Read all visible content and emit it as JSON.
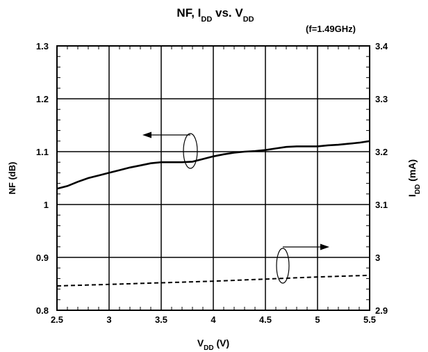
{
  "chart_data": {
    "type": "line",
    "title": {
      "parts": [
        "NF, I",
        "DD",
        " vs. V",
        "DD"
      ],
      "subtitle": "(f=1.49GHz)"
    },
    "xlabel": {
      "main": "V",
      "sub": "DD",
      "unit": " (V)"
    },
    "ylabel_left": "NF (dB)",
    "ylabel_right": {
      "main": "I",
      "sub": "DD",
      "unit": " (mA)"
    },
    "xlim": [
      2.5,
      5.5
    ],
    "ylim_left": [
      0.8,
      1.3
    ],
    "ylim_right": [
      2.9,
      3.4
    ],
    "x_ticks": [
      "2.5",
      "3",
      "3.5",
      "4",
      "4.5",
      "5",
      "5.5"
    ],
    "y_ticks_left": [
      "0.8",
      "0.9",
      "1",
      "1.1",
      "1.2",
      "1.3"
    ],
    "y_ticks_right": [
      "2.9",
      "3",
      "3.1",
      "3.2",
      "3.3",
      "3.4"
    ],
    "grid": true,
    "series": [
      {
        "axis": "left",
        "style": "solid",
        "x": [
          2.5,
          2.6,
          2.7,
          2.8,
          2.9,
          3.0,
          3.1,
          3.2,
          3.3,
          3.4,
          3.5,
          3.6,
          3.7,
          3.8,
          3.9,
          4.0,
          4.1,
          4.2,
          4.3,
          4.4,
          4.5,
          4.6,
          4.7,
          4.8,
          4.9,
          5.0,
          5.1,
          5.2,
          5.3,
          5.4,
          5.5
        ],
        "y": [
          1.03,
          1.035,
          1.043,
          1.05,
          1.055,
          1.06,
          1.065,
          1.07,
          1.074,
          1.078,
          1.08,
          1.08,
          1.08,
          1.081,
          1.086,
          1.091,
          1.095,
          1.098,
          1.1,
          1.101,
          1.103,
          1.106,
          1.109,
          1.11,
          1.11,
          1.11,
          1.112,
          1.113,
          1.115,
          1.117,
          1.12
        ]
      },
      {
        "axis": "right",
        "style": "dashed",
        "x": [
          2.5,
          3.0,
          3.5,
          4.0,
          4.5,
          5.0,
          5.5
        ],
        "y": [
          2.946,
          2.949,
          2.952,
          2.955,
          2.959,
          2.963,
          2.966
        ]
      }
    ],
    "colors": {
      "line": "#000000",
      "grid": "#000000",
      "background": "#ffffff"
    }
  }
}
